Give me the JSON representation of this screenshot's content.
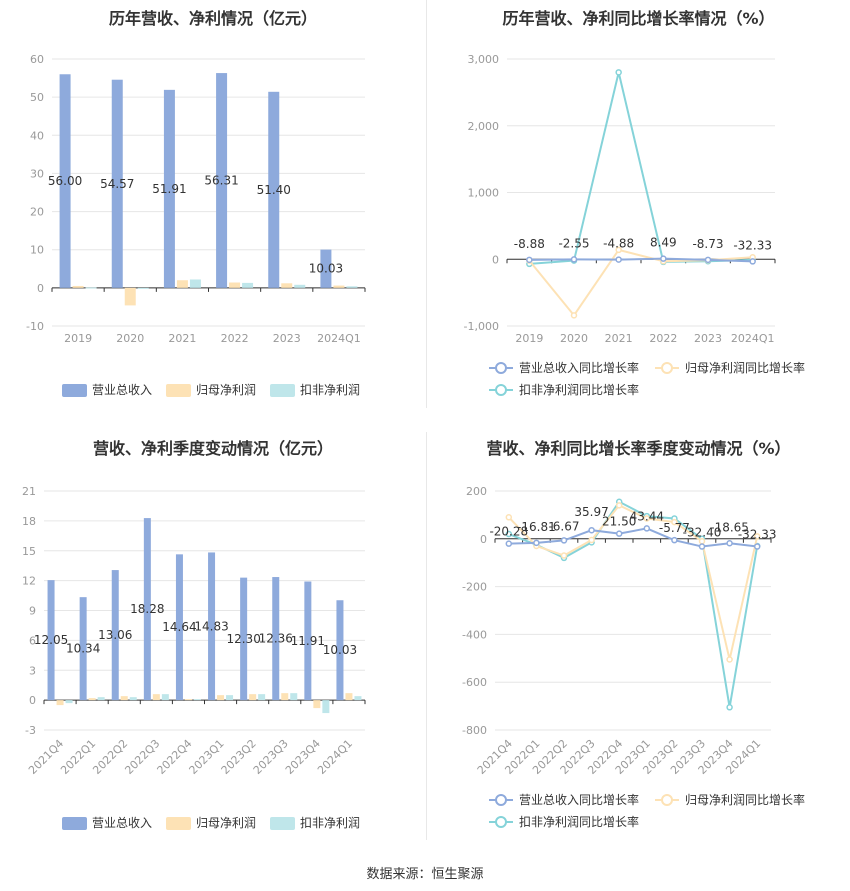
{
  "colors": {
    "revenue": "#8eaadc",
    "parent_profit": "#fde2b5",
    "deducted_profit": "#bfe6ea",
    "rev_growth_line": "#8eaadc",
    "parent_growth_line": "#fde2b5",
    "deducted_growth_line": "#85d3d9",
    "grid": "#e6e6e6",
    "axis": "#333333"
  },
  "source_text": "数据来源：恒生聚源",
  "chart_data": [
    {
      "type": "bar",
      "title": "历年营收、净利情况（亿元）",
      "categories": [
        "2019",
        "2020",
        "2021",
        "2022",
        "2023",
        "2024Q1"
      ],
      "series": [
        {
          "name": "营业总收入",
          "values": [
            56.0,
            54.57,
            51.91,
            56.31,
            51.4,
            10.03
          ]
        },
        {
          "name": "归母净利润",
          "values": [
            0.5,
            -4.6,
            2.0,
            1.4,
            1.2,
            0.6
          ]
        },
        {
          "name": "扣非净利润",
          "values": [
            0.1,
            0.0,
            2.2,
            1.3,
            0.8,
            0.4
          ]
        }
      ],
      "data_labels": [
        "56.00",
        "54.57",
        "51.91",
        "56.31",
        "51.40",
        "10.03"
      ],
      "ylim": [
        -10,
        60
      ],
      "yticks": [
        -10,
        0,
        10,
        20,
        30,
        40,
        50,
        60
      ],
      "legend": "bottom"
    },
    {
      "type": "line",
      "title": "历年营收、净利同比增长率情况（%）",
      "categories": [
        "2019",
        "2020",
        "2021",
        "2022",
        "2023",
        "2024Q1"
      ],
      "series": [
        {
          "name": "营业总收入同比增长率",
          "values": [
            -8.88,
            -2.55,
            -4.88,
            8.49,
            -8.73,
            -32.33
          ]
        },
        {
          "name": "归母净利润同比增长率",
          "values": [
            -20,
            -840,
            140,
            -30,
            -15,
            30
          ]
        },
        {
          "name": "扣非净利润同比增长率",
          "values": [
            -70,
            -20,
            2800,
            -40,
            -30,
            -10
          ]
        }
      ],
      "data_labels": [
        "-8.88",
        "-2.55",
        "-4.88",
        "8.49",
        "-8.73",
        "-32.33"
      ],
      "ylim": [
        -1000,
        3000
      ],
      "yticks": [
        -1000,
        0,
        1000,
        2000,
        3000
      ],
      "ytick_labels": [
        "-1,000",
        "0",
        "1,000",
        "2,000",
        "3,000"
      ],
      "legend": "bottom"
    },
    {
      "type": "bar",
      "title": "营收、净利季度变动情况（亿元）",
      "categories": [
        "2021Q4",
        "2022Q1",
        "2022Q2",
        "2022Q3",
        "2022Q4",
        "2023Q1",
        "2023Q2",
        "2023Q3",
        "2023Q4",
        "2024Q1"
      ],
      "series": [
        {
          "name": "营业总收入",
          "values": [
            12.05,
            10.34,
            13.06,
            18.28,
            14.64,
            14.83,
            12.3,
            12.36,
            11.91,
            10.03
          ]
        },
        {
          "name": "归母净利润",
          "values": [
            -0.5,
            0.2,
            0.4,
            0.6,
            0.1,
            0.5,
            0.6,
            0.7,
            -0.8,
            0.7
          ]
        },
        {
          "name": "扣非净利润",
          "values": [
            -0.3,
            0.3,
            0.3,
            0.6,
            0.1,
            0.5,
            0.6,
            0.7,
            -1.3,
            0.4
          ]
        }
      ],
      "data_labels": [
        "12.05",
        "10.34",
        "13.06",
        "18.28",
        "14.64",
        "14.83",
        "12.30",
        "12.36",
        "11.91",
        "10.03"
      ],
      "ylim": [
        -3,
        21
      ],
      "yticks": [
        -3,
        0,
        3,
        6,
        9,
        12,
        15,
        18,
        21
      ],
      "legend": "bottom"
    },
    {
      "type": "line",
      "title": "营收、净利同比增长率季度变动情况（%）",
      "categories": [
        "2021Q4",
        "2022Q1",
        "2022Q2",
        "2022Q3",
        "2022Q4",
        "2023Q1",
        "2023Q2",
        "2023Q3",
        "2023Q4",
        "2024Q1"
      ],
      "series": [
        {
          "name": "营业总收入同比增长率",
          "values": [
            -20.28,
            -16.81,
            -6.67,
            35.97,
            21.5,
            43.44,
            -5.77,
            -32.4,
            -18.65,
            -32.33
          ]
        },
        {
          "name": "归母净利润同比增长率",
          "values": [
            90,
            -30,
            -70,
            -5,
            140,
            85,
            70,
            -10,
            -505,
            10
          ]
        },
        {
          "name": "扣非净利润同比增长率",
          "values": [
            20,
            -25,
            -80,
            -15,
            155,
            95,
            85,
            0,
            -705,
            -30
          ]
        }
      ],
      "data_labels": [
        "-20.28",
        "-16.81",
        "-6.67",
        "35.97",
        "21.50",
        "43.44",
        "-5.77",
        "-32.40",
        "-18.65",
        "-32.33"
      ],
      "ylim": [
        -800,
        200
      ],
      "yticks": [
        -800,
        -600,
        -400,
        -200,
        0,
        200
      ],
      "legend": "bottom"
    }
  ]
}
